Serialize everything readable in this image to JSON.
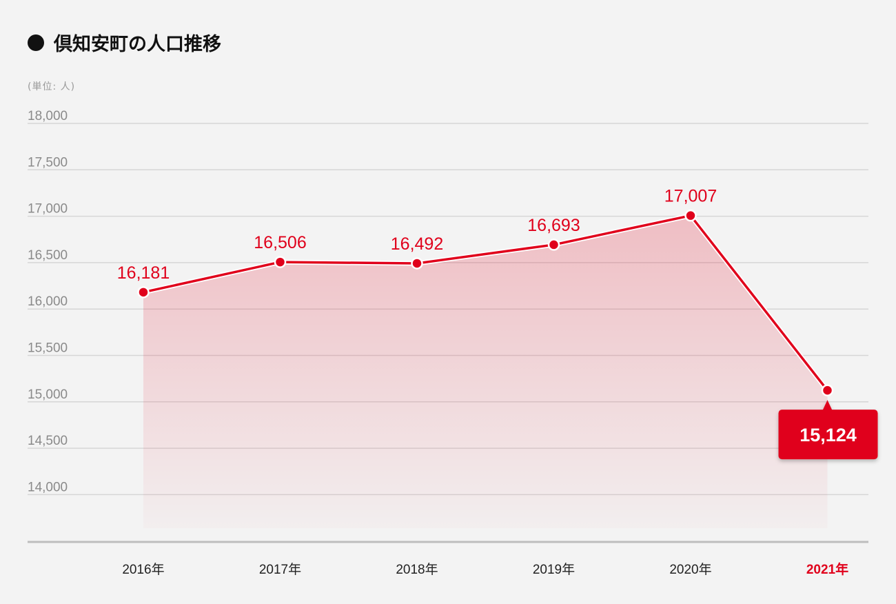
{
  "title": "倶知安町の人口推移",
  "unit_label": "(単位: 人)",
  "colors": {
    "accent": "#e0001b",
    "grid": "#d6d6d6",
    "axis": "#bdbdbd",
    "background": "#f3f3f3"
  },
  "chart_data": {
    "type": "area",
    "title": "倶知安町の人口推移",
    "ylabel": "(単位: 人)",
    "xlabel": "",
    "ylim": [
      13500,
      18000
    ],
    "grid": true,
    "categories": [
      "2016年",
      "2017年",
      "2018年",
      "2019年",
      "2020年",
      "2021年"
    ],
    "values": [
      16181,
      16506,
      16492,
      16693,
      17007,
      15124
    ],
    "value_labels": [
      "16,181",
      "16,506",
      "16,492",
      "16,693",
      "17,007",
      "15,124"
    ],
    "yticks": [
      18000,
      17500,
      17000,
      16500,
      16000,
      15500,
      15000,
      14500,
      14000
    ],
    "ytick_labels": [
      "18,000",
      "17,500",
      "17,000",
      "16,500",
      "16,000",
      "15,500",
      "15,000",
      "14,500",
      "14,000"
    ],
    "highlight_index": 5
  }
}
